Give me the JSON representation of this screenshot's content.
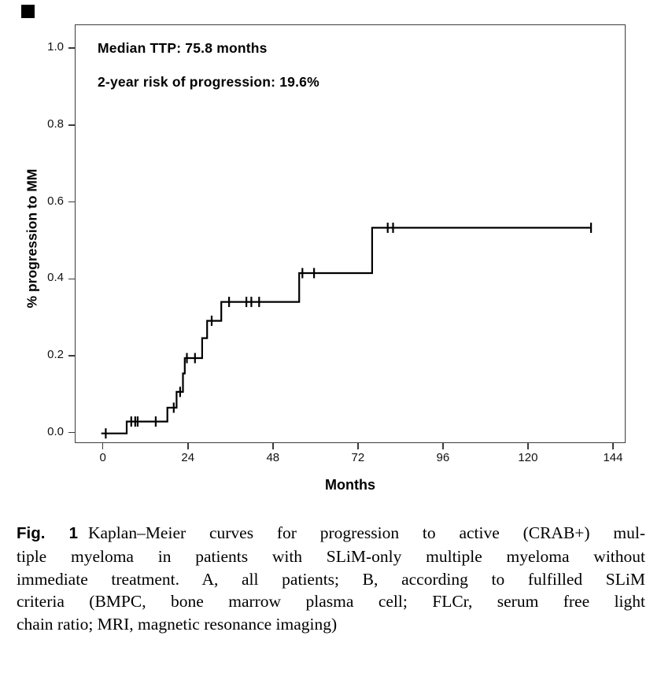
{
  "chart_data": {
    "type": "line",
    "subtype": "kaplan-meier-step",
    "title": "",
    "xlabel": "Months",
    "ylabel": "% progression to MM",
    "x_ticks": [
      0,
      24,
      48,
      72,
      96,
      120,
      144
    ],
    "y_ticks": [
      "0.0",
      "0.2",
      "0.4",
      "0.6",
      "0.8",
      "1.0"
    ],
    "xlim": [
      -8,
      147.5
    ],
    "ylim": [
      -0.03,
      1.06
    ],
    "grid": false,
    "legend": "none",
    "line_color": "#000000",
    "annotations": [
      "Median TTP: 75.8 months",
      "2-year risk of progression: 19.6%"
    ],
    "series": [
      {
        "name": "all patients",
        "steps": [
          [
            0,
            0
          ],
          [
            6.5,
            0.031
          ],
          [
            18.0,
            0.067
          ],
          [
            20.6,
            0.108
          ],
          [
            22.4,
            0.156
          ],
          [
            22.9,
            0.196
          ],
          [
            27.8,
            0.248
          ],
          [
            29.2,
            0.293
          ],
          [
            33.2,
            0.342
          ],
          [
            55.2,
            0.417
          ],
          [
            75.8,
            0.535
          ]
        ],
        "end_time": 137.6,
        "censor_marks": [
          [
            0.6,
            0
          ],
          [
            7.8,
            0.031
          ],
          [
            8.9,
            0.031
          ],
          [
            9.6,
            0.031
          ],
          [
            14.7,
            0.031
          ],
          [
            19.8,
            0.067
          ],
          [
            21.6,
            0.108
          ],
          [
            23.5,
            0.196
          ],
          [
            25.8,
            0.196
          ],
          [
            30.5,
            0.293
          ],
          [
            35.4,
            0.342
          ],
          [
            40.3,
            0.342
          ],
          [
            41.7,
            0.342
          ],
          [
            43.9,
            0.342
          ],
          [
            56.1,
            0.417
          ],
          [
            59.4,
            0.417
          ],
          [
            80.2,
            0.535
          ],
          [
            81.7,
            0.535
          ],
          [
            137.6,
            0.535
          ]
        ]
      }
    ]
  },
  "caption": {
    "label": "Fig. 1",
    "lines": [
      "Kaplan–Meier curves for progression to active (CRAB+) mul-",
      "tiple myeloma in patients with SLiM-only multiple myeloma without",
      "immediate treatment. A, all patients; B, according to fulfilled SLiM",
      "criteria (BMPC, bone marrow plasma cell; FLCr, serum free light",
      "chain ratio; MRI, magnetic resonance imaging)"
    ]
  }
}
